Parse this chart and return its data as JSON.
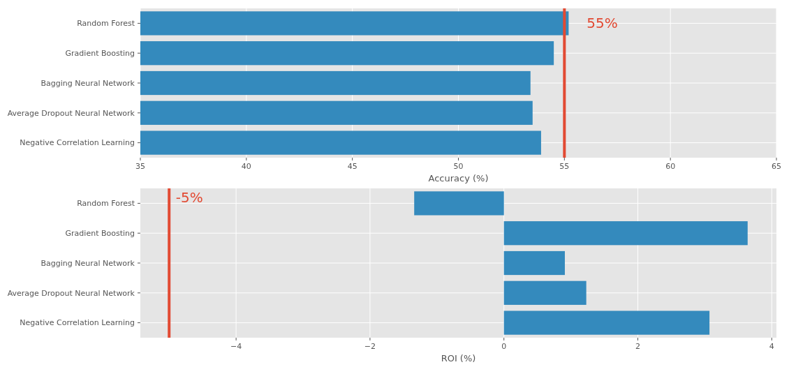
{
  "chart_data": [
    {
      "type": "bar",
      "orientation": "horizontal",
      "categories": [
        "Random Forest",
        "Gradient Boosting",
        "Bagging Neural Network",
        "Average Dropout Neural Network",
        "Negative Correlation Learning"
      ],
      "values": [
        55.2,
        54.5,
        53.4,
        53.5,
        53.9
      ],
      "color": "#348abd",
      "xlabel": "Accuracy (%)",
      "xlim": [
        35,
        65
      ],
      "xticks": [
        35,
        40,
        45,
        50,
        55,
        60,
        65
      ],
      "grid": true,
      "ref_lines": [
        {
          "axis": "x",
          "value": 55,
          "color": "#e24a33"
        }
      ],
      "annotations": [
        "55%"
      ]
    },
    {
      "type": "bar",
      "orientation": "horizontal",
      "categories": [
        "Random Forest",
        "Gradient Boosting",
        "Bagging Neural Network",
        "Average Dropout Neural Network",
        "Negative Correlation Learning"
      ],
      "values": [
        -1.34,
        3.64,
        0.91,
        1.23,
        3.07
      ],
      "color": "#348abd",
      "xlabel": "ROI (%)",
      "xlim": [
        -5.43,
        4.07
      ],
      "xticks": [
        {
          "value": -4,
          "label": "−4"
        },
        {
          "value": -2,
          "label": "−2"
        },
        0,
        2,
        4
      ],
      "grid": true,
      "ref_lines": [
        {
          "axis": "x",
          "value": -5,
          "color": "#e24a33"
        }
      ],
      "annotations": [
        "-5%"
      ]
    }
  ]
}
